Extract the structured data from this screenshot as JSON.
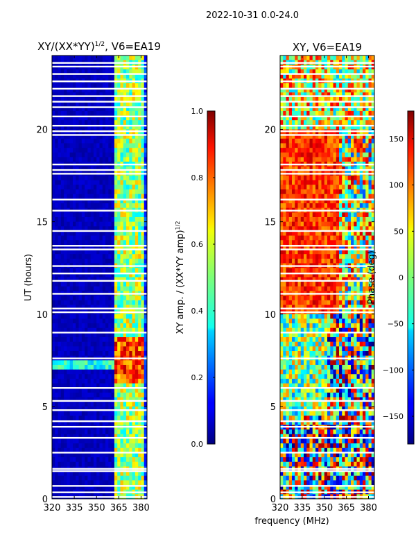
{
  "figure": {
    "suptitle": "2022-10-31 0.0-24.0",
    "xlabel": "frequency (MHz)"
  },
  "chart_data": [
    {
      "type": "heatmap",
      "title": "XY/(XX*YY)¹ᐟ², V6=EA19",
      "title_main": "XY/(XX*YY)",
      "title_exp": "1/2",
      "title_suffix": ", V6=EA19",
      "xlabel": "frequency (MHz)",
      "ylabel": "UT (hours)",
      "xlim": [
        320,
        384
      ],
      "ylim": [
        0,
        24
      ],
      "xticks": [
        320,
        335,
        350,
        365,
        380
      ],
      "yticks": [
        0,
        5,
        10,
        15,
        20
      ],
      "xtick_labels": [
        "320",
        "335",
        "350",
        "365",
        "380"
      ],
      "ytick_labels": [
        "0",
        "5",
        "10",
        "15",
        "20"
      ],
      "colormap": "jet",
      "colorbar": {
        "label": "XY amp. / (XX*YY amp)^1/2",
        "label_main": "XY amp. / (XX*YY amp)",
        "label_exp": "1/2",
        "range": [
          0.0,
          1.0
        ],
        "ticks": [
          0.0,
          0.2,
          0.4,
          0.6,
          0.8,
          1.0
        ],
        "tick_labels": [
          "0.0",
          "0.2",
          "0.4",
          "0.6",
          "0.8",
          "1.0"
        ]
      },
      "flagged_gap_hours": [
        0.1,
        0.35,
        0.7,
        1.5,
        1.62,
        2.5,
        3.3,
        3.9,
        4.2,
        4.8,
        5.3,
        6.0,
        7.6,
        9.0,
        10.1,
        10.3,
        11.1,
        11.8,
        12.2,
        12.6,
        13.5,
        13.7,
        14.5,
        15.6,
        16.2,
        17.6,
        17.8,
        18.1,
        19.7,
        19.9,
        20.2,
        20.7,
        21.2,
        21.5,
        21.8,
        22.2,
        22.6,
        23.0,
        23.4,
        23.6
      ]
    },
    {
      "type": "heatmap",
      "title": "XY, V6=EA19",
      "xlabel": "frequency (MHz)",
      "ylabel": "",
      "xlim": [
        320,
        384
      ],
      "ylim": [
        0,
        24
      ],
      "xticks": [
        320,
        335,
        350,
        365,
        380
      ],
      "yticks": [
        0,
        5,
        10,
        15,
        20
      ],
      "xtick_labels": [
        "320",
        "335",
        "350",
        "365",
        "380"
      ],
      "ytick_labels": [
        "0",
        "5",
        "10",
        "15",
        "20"
      ],
      "colormap": "jet",
      "colorbar": {
        "label": "Phase (deg)",
        "range": [
          -180,
          180
        ],
        "ticks": [
          -150,
          -100,
          -50,
          0,
          50,
          100,
          150
        ],
        "tick_labels": [
          "−150",
          "−100",
          "−50",
          "0",
          "50",
          "100",
          "150"
        ]
      },
      "flagged_gap_hours": [
        0.1,
        0.35,
        0.7,
        1.5,
        1.62,
        2.5,
        3.3,
        3.9,
        4.2,
        4.8,
        5.3,
        6.0,
        7.6,
        9.0,
        10.1,
        10.3,
        11.1,
        11.8,
        12.2,
        12.6,
        13.5,
        13.7,
        14.5,
        15.6,
        16.2,
        17.6,
        17.8,
        18.1,
        19.7,
        19.9,
        20.2,
        20.7,
        21.2,
        21.5,
        21.8,
        22.2,
        22.6,
        23.0,
        23.4,
        23.6
      ]
    }
  ]
}
